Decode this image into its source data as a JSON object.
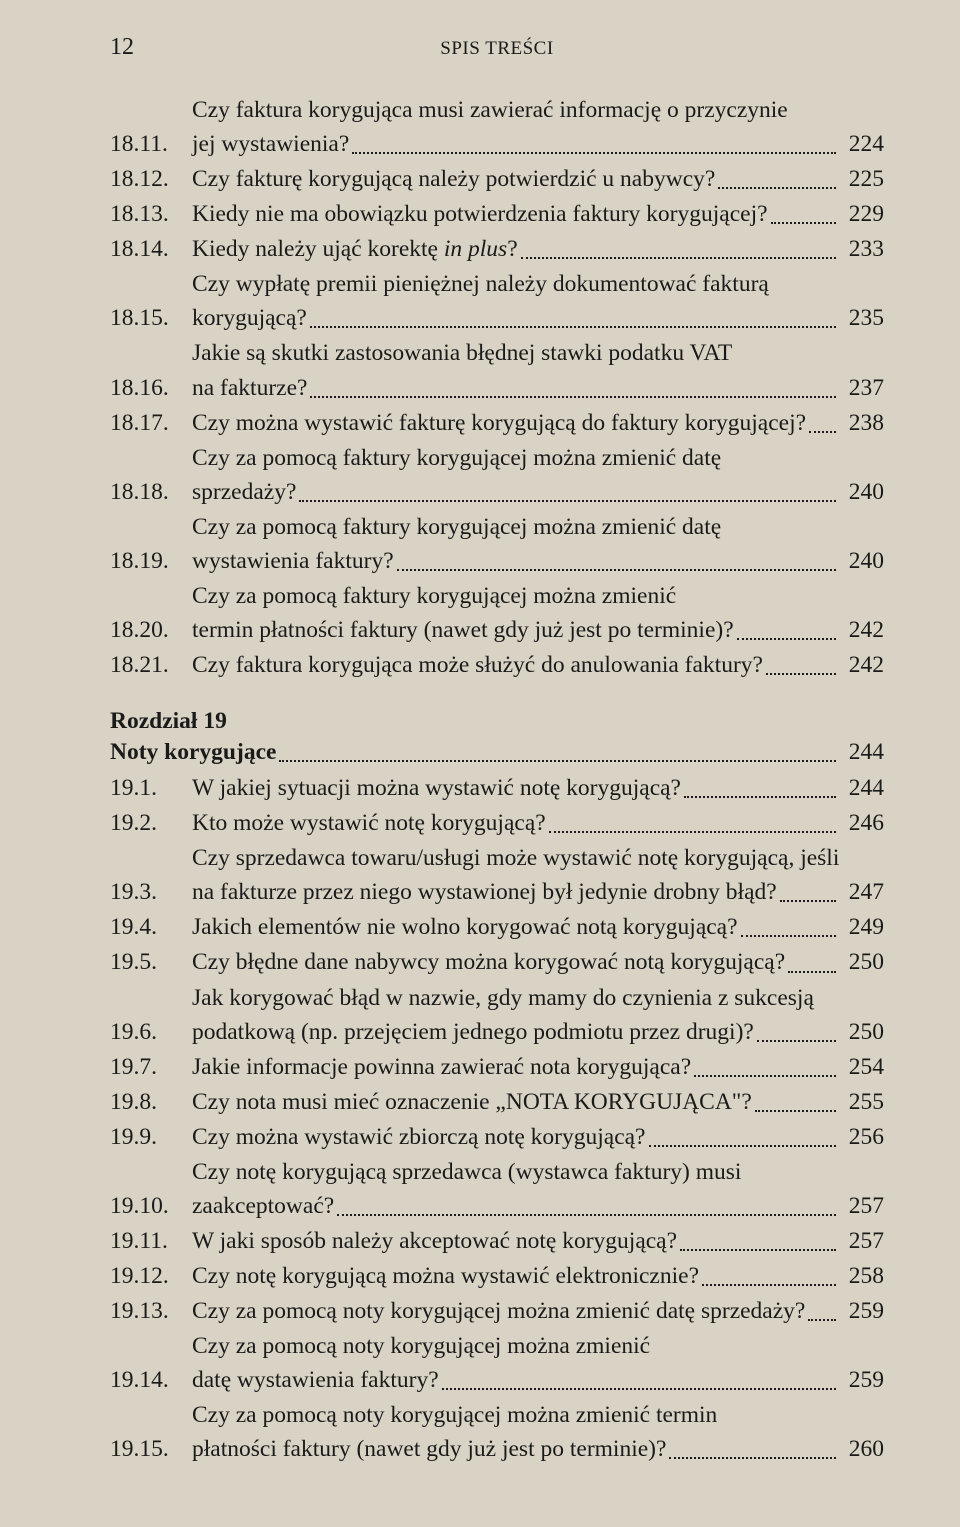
{
  "page_number": "12",
  "header_title": "SPIS TREŚCI",
  "entries_top": [
    {
      "num": "18.11.",
      "lines": [
        "Czy faktura korygująca musi zawierać informację o przyczynie",
        "jej wystawienia?"
      ],
      "page": "224"
    },
    {
      "num": "18.12.",
      "lines": [
        "Czy fakturę korygującą należy potwierdzić u nabywcy?"
      ],
      "page": "225"
    },
    {
      "num": "18.13.",
      "lines": [
        "Kiedy nie ma obowiązku potwierdzenia faktury korygującej?"
      ],
      "page": "229"
    },
    {
      "num": "18.14.",
      "lines": [
        "Kiedy należy ująć korektę <i>in plus</i>?"
      ],
      "page": "233"
    },
    {
      "num": "18.15.",
      "lines": [
        "Czy wypłatę premii pieniężnej należy dokumentować fakturą",
        "korygującą?"
      ],
      "page": "235"
    },
    {
      "num": "18.16.",
      "lines": [
        "Jakie są skutki zastosowania błędnej stawki podatku VAT",
        "na fakturze?"
      ],
      "page": "237"
    },
    {
      "num": "18.17.",
      "lines": [
        "Czy można wystawić fakturę korygującą do faktury korygującej?"
      ],
      "page": "238"
    },
    {
      "num": "18.18.",
      "lines": [
        "Czy za pomocą faktury korygującej można zmienić datę",
        "sprzedaży?"
      ],
      "page": "240"
    },
    {
      "num": "18.19.",
      "lines": [
        "Czy za pomocą faktury korygującej można zmienić datę",
        "wystawienia faktury?"
      ],
      "page": "240"
    },
    {
      "num": "18.20.",
      "lines": [
        "Czy za pomocą faktury korygującej można zmienić",
        "termin płatności faktury (nawet gdy już jest po terminie)?"
      ],
      "page": "242"
    },
    {
      "num": "18.21.",
      "lines": [
        "Czy faktura korygująca może służyć do anulowania faktury?"
      ],
      "page": "242"
    }
  ],
  "chapter": {
    "label": "Rozdział 19",
    "title": "Noty korygujące",
    "page": "244"
  },
  "entries_bottom": [
    {
      "num": "19.1.",
      "lines": [
        "W jakiej sytuacji można wystawić notę korygującą?"
      ],
      "page": "244"
    },
    {
      "num": "19.2.",
      "lines": [
        "Kto może wystawić notę korygującą?"
      ],
      "page": "246"
    },
    {
      "num": "19.3.",
      "lines": [
        "Czy sprzedawca towaru/usługi może wystawić notę korygującą, jeśli",
        "na fakturze przez niego wystawionej był jedynie drobny błąd?"
      ],
      "page": "247"
    },
    {
      "num": "19.4.",
      "lines": [
        "Jakich elementów nie wolno korygować notą korygującą?"
      ],
      "page": "249"
    },
    {
      "num": "19.5.",
      "lines": [
        "Czy błędne dane nabywcy można korygować notą korygującą?"
      ],
      "page": "250"
    },
    {
      "num": "19.6.",
      "lines": [
        "Jak korygować błąd w nazwie, gdy mamy do czynienia z sukcesją",
        "podatkową (np. przejęciem jednego podmiotu przez drugi)?"
      ],
      "page": "250"
    },
    {
      "num": "19.7.",
      "lines": [
        "Jakie informacje powinna zawierać nota korygująca?"
      ],
      "page": "254"
    },
    {
      "num": "19.8.",
      "lines": [
        "Czy nota musi mieć oznaczenie „NOTA KORYGUJĄCA\"?"
      ],
      "page": "255"
    },
    {
      "num": "19.9.",
      "lines": [
        "Czy można wystawić zbiorczą notę korygującą?"
      ],
      "page": "256"
    },
    {
      "num": "19.10.",
      "lines": [
        "Czy notę korygującą sprzedawca (wystawca faktury) musi",
        "zaakceptować?"
      ],
      "page": "257"
    },
    {
      "num": "19.11.",
      "lines": [
        "W jaki sposób należy akceptować notę korygującą?"
      ],
      "page": "257"
    },
    {
      "num": "19.12.",
      "lines": [
        "Czy notę korygującą można wystawić elektronicznie?"
      ],
      "page": "258"
    },
    {
      "num": "19.13.",
      "lines": [
        "Czy za pomocą noty korygującej można zmienić datę sprzedaży?"
      ],
      "page": "259"
    },
    {
      "num": "19.14.",
      "lines": [
        "Czy za pomocą noty korygującej można zmienić",
        "datę wystawienia faktury?"
      ],
      "page": "259"
    },
    {
      "num": "19.15.",
      "lines": [
        "Czy za pomocą noty korygującej można zmienić termin",
        "płatności faktury (nawet gdy już jest po terminie)?"
      ],
      "page": "260"
    }
  ]
}
